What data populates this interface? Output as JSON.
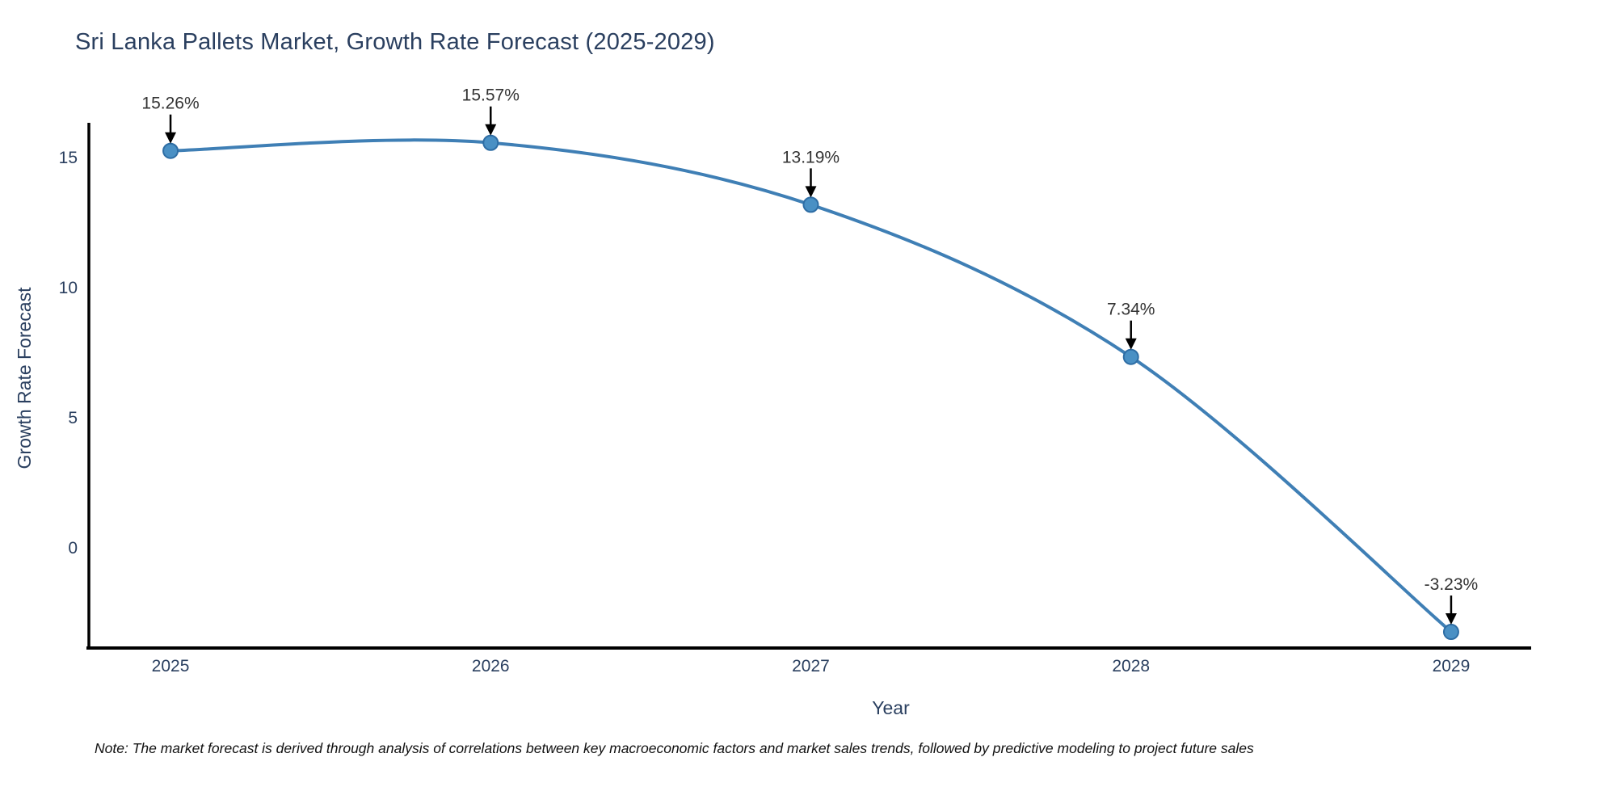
{
  "title": "Sri Lanka Pallets Market, Growth Rate Forecast (2025-2029)",
  "note": "Note: The market forecast is derived through analysis of correlations between key macroeconomic factors and market sales trends, followed by predictive modeling to project future sales",
  "chart_data": {
    "type": "line",
    "line_shape": "spline",
    "x": [
      2025,
      2026,
      2027,
      2028,
      2029
    ],
    "values": [
      15.26,
      15.57,
      13.19,
      7.34,
      -3.23
    ],
    "point_labels": [
      "15.26%",
      "15.57%",
      "13.19%",
      "7.34%",
      "-3.23%"
    ],
    "title": "Sri Lanka Pallets Market, Growth Rate Forecast (2025-2029)",
    "xlabel": "Year",
    "ylabel": "Growth Rate Forecast",
    "xlim": [
      2024.745,
      2029.25
    ],
    "ylim": [
      -3.85,
      16.09
    ],
    "xticks": [
      "2025",
      "2026",
      "2027",
      "2028",
      "2029"
    ],
    "xtick_values": [
      2025,
      2026,
      2027,
      2028,
      2029
    ],
    "yticks": [
      "0",
      "5",
      "10",
      "15"
    ],
    "ytick_values": [
      0,
      5,
      10,
      15
    ],
    "grid": false,
    "legend": "none",
    "colors": {
      "line": "#3f7fb5",
      "marker_fill": "#4a90c4",
      "marker_edge": "#2e6da4",
      "axis_line": "#000000",
      "tick_text": "#2a3f5f",
      "axis_title_text": "#2a3f5f",
      "title_text": "#2a3f5f",
      "annotation_text": "#333333",
      "annotation_arrow": "#000000",
      "background": "#ffffff"
    }
  }
}
